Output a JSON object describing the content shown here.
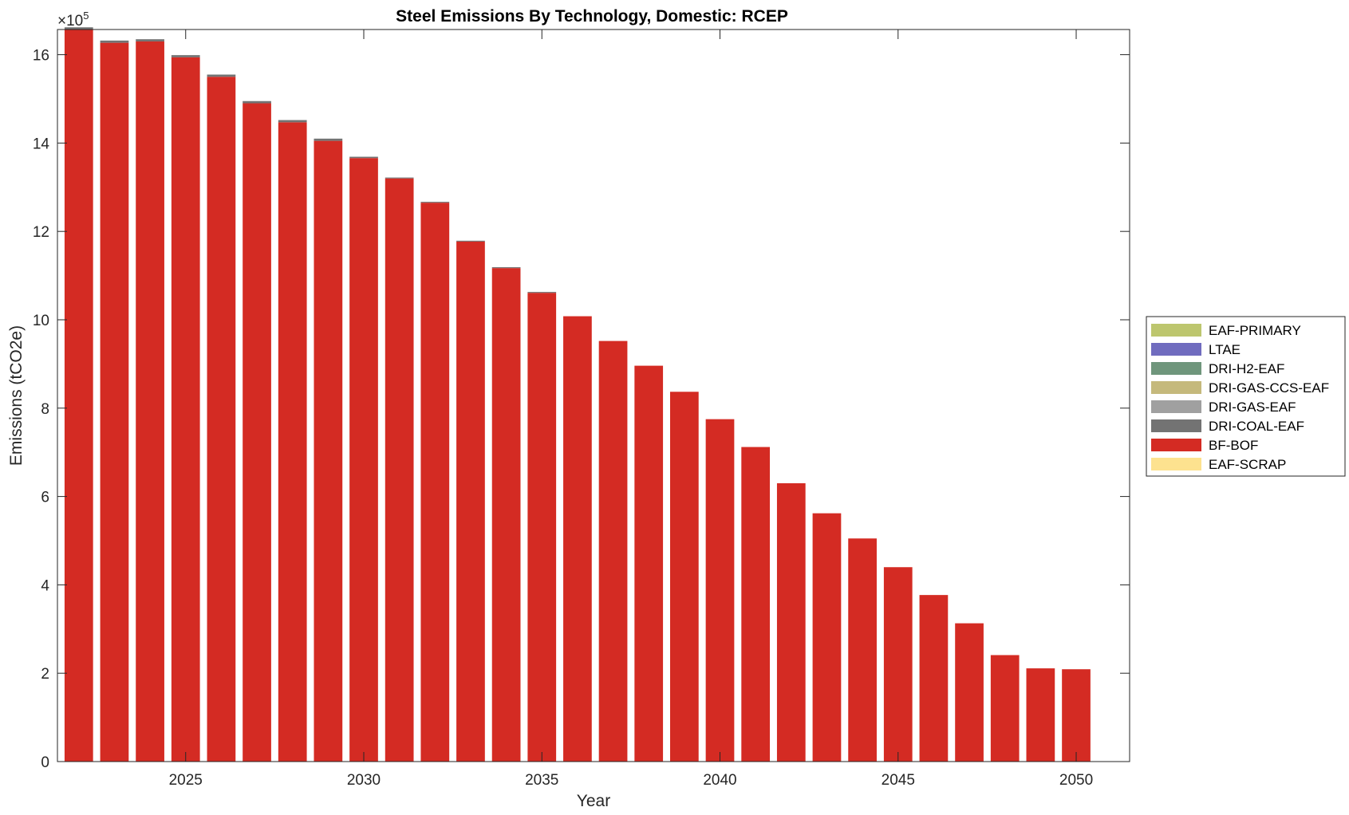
{
  "chart_data": {
    "type": "bar",
    "stacked": true,
    "title": "Steel Emissions By Technology, Domestic: RCEP",
    "xlabel": "Year",
    "ylabel": "Emissions (tCO2e)",
    "y_exponent_label": "×10",
    "y_exponent": "5",
    "ylim": [
      0,
      16.57
    ],
    "y_scale_factor": 100000,
    "xlim": [
      2021.4,
      2051.5
    ],
    "xticks": [
      2025,
      2030,
      2035,
      2040,
      2045,
      2050
    ],
    "yticks": [
      0,
      2,
      4,
      6,
      8,
      10,
      12,
      14,
      16
    ],
    "legend_position": "outside-right",
    "grid": false,
    "categories": [
      2022,
      2023,
      2024,
      2025,
      2026,
      2027,
      2028,
      2029,
      2030,
      2031,
      2032,
      2033,
      2034,
      2035,
      2036,
      2037,
      2038,
      2039,
      2040,
      2041,
      2042,
      2043,
      2044,
      2045,
      2046,
      2047,
      2048,
      2049,
      2050
    ],
    "series": [
      {
        "name": "EAF-SCRAP",
        "color": "#fde28f",
        "values": [
          0,
          0,
          0,
          0,
          0,
          0,
          0,
          0,
          0,
          0,
          0,
          0,
          0,
          0,
          0,
          0,
          0,
          0,
          0,
          0,
          0,
          0,
          0,
          0,
          0,
          0,
          0,
          0,
          0
        ]
      },
      {
        "name": "BF-BOF",
        "color": "#d42b23",
        "values": [
          16.57,
          16.27,
          16.3,
          15.94,
          15.5,
          14.9,
          14.47,
          14.05,
          13.66,
          13.2,
          12.65,
          11.77,
          11.17,
          10.61,
          10.08,
          9.52,
          8.96,
          8.37,
          7.75,
          7.12,
          6.3,
          5.62,
          5.05,
          4.4,
          3.77,
          3.13,
          2.41,
          2.11,
          2.09
        ]
      },
      {
        "name": "DRI-COAL-EAF",
        "color": "#737373",
        "values": [
          0.05,
          0.05,
          0.05,
          0.05,
          0.05,
          0.05,
          0.05,
          0.05,
          0.03,
          0.02,
          0.02,
          0.02,
          0.02,
          0.02,
          0,
          0,
          0,
          0,
          0,
          0,
          0,
          0,
          0,
          0,
          0,
          0,
          0,
          0,
          0
        ]
      },
      {
        "name": "DRI-GAS-EAF",
        "color": "#a0a0a0",
        "values": [
          0,
          0,
          0,
          0,
          0,
          0,
          0,
          0,
          0,
          0,
          0,
          0,
          0,
          0,
          0,
          0,
          0,
          0,
          0,
          0,
          0,
          0,
          0,
          0,
          0,
          0,
          0,
          0,
          0
        ]
      },
      {
        "name": "DRI-GAS-CCS-EAF",
        "color": "#c5b97c",
        "values": [
          0,
          0,
          0,
          0,
          0,
          0,
          0,
          0,
          0,
          0,
          0,
          0,
          0,
          0,
          0,
          0,
          0,
          0,
          0,
          0,
          0,
          0,
          0,
          0,
          0,
          0,
          0,
          0,
          0
        ]
      },
      {
        "name": "DRI-H2-EAF",
        "color": "#6f967c",
        "values": [
          0,
          0,
          0,
          0,
          0,
          0,
          0,
          0,
          0,
          0,
          0,
          0,
          0,
          0,
          0,
          0,
          0,
          0,
          0,
          0,
          0,
          0,
          0,
          0,
          0,
          0,
          0,
          0,
          0
        ]
      },
      {
        "name": "LTAE",
        "color": "#706cbf",
        "values": [
          0,
          0,
          0,
          0,
          0,
          0,
          0,
          0,
          0,
          0,
          0,
          0,
          0,
          0,
          0,
          0,
          0,
          0,
          0,
          0,
          0,
          0,
          0,
          0,
          0,
          0,
          0,
          0,
          0
        ]
      },
      {
        "name": "EAF-PRIMARY",
        "color": "#bdc66e",
        "values": [
          0,
          0,
          0,
          0,
          0,
          0,
          0,
          0,
          0,
          0,
          0,
          0,
          0,
          0,
          0,
          0,
          0,
          0,
          0,
          0,
          0,
          0,
          0,
          0,
          0,
          0,
          0,
          0,
          0
        ]
      }
    ],
    "legend_order": [
      "EAF-PRIMARY",
      "LTAE",
      "DRI-H2-EAF",
      "DRI-GAS-CCS-EAF",
      "DRI-GAS-EAF",
      "DRI-COAL-EAF",
      "BF-BOF",
      "EAF-SCRAP"
    ]
  }
}
